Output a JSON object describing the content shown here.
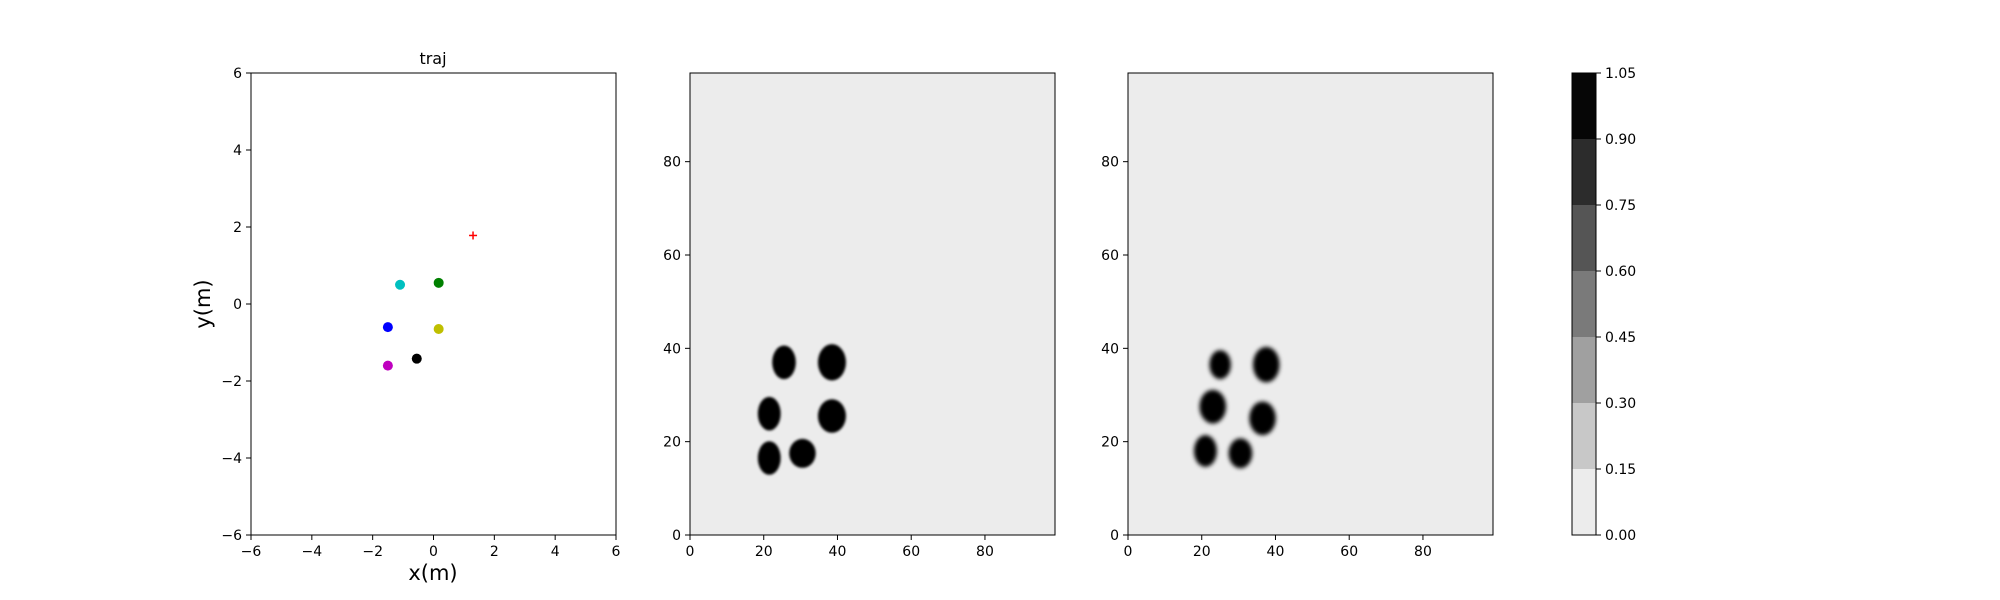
{
  "chart_data": [
    {
      "type": "scatter",
      "title": "traj",
      "xlabel": "x(m)",
      "ylabel": "y(m)",
      "xlim": [
        -6,
        6
      ],
      "ylim": [
        -6,
        6
      ],
      "xticks": [
        "−6",
        "−4",
        "−2",
        "0",
        "2",
        "4",
        "6"
      ],
      "yticks": [
        "−6",
        "−4",
        "−2",
        "0",
        "2",
        "4",
        "6"
      ],
      "grid": false,
      "points": [
        {
          "x": -1.1,
          "y": 0.5,
          "color": "#00bfbf",
          "marker": "circle"
        },
        {
          "x": 0.17,
          "y": 0.55,
          "color": "#008000",
          "marker": "circle"
        },
        {
          "x": -1.5,
          "y": -0.6,
          "color": "#0000ff",
          "marker": "circle"
        },
        {
          "x": 0.17,
          "y": -0.65,
          "color": "#bfbf00",
          "marker": "circle"
        },
        {
          "x": -0.55,
          "y": -1.42,
          "color": "#000000",
          "marker": "circle"
        },
        {
          "x": -1.5,
          "y": -1.6,
          "color": "#bf00bf",
          "marker": "circle"
        },
        {
          "x": 1.3,
          "y": 1.78,
          "color": "#ff0000",
          "marker": "plus"
        }
      ]
    },
    {
      "type": "heatmap",
      "xlim": [
        0,
        99
      ],
      "ylim": [
        0,
        99
      ],
      "xticks": [
        "0",
        "20",
        "40",
        "60",
        "80"
      ],
      "yticks": [
        "0",
        "20",
        "40",
        "60",
        "80"
      ],
      "background_value": 0.0,
      "blobs": [
        {
          "x": 25.5,
          "y": 37,
          "rx": 3.2,
          "ry": 3.6,
          "value": 1.0
        },
        {
          "x": 38.5,
          "y": 37,
          "rx": 3.8,
          "ry": 3.9,
          "value": 1.0
        },
        {
          "x": 21.5,
          "y": 26,
          "rx": 3.1,
          "ry": 3.6,
          "value": 1.0
        },
        {
          "x": 38.5,
          "y": 25.5,
          "rx": 3.8,
          "ry": 3.6,
          "value": 1.0
        },
        {
          "x": 21.5,
          "y": 16.5,
          "rx": 3.1,
          "ry": 3.6,
          "value": 1.0
        },
        {
          "x": 30.5,
          "y": 17.5,
          "rx": 3.6,
          "ry": 3.1,
          "value": 1.0
        }
      ]
    },
    {
      "type": "heatmap",
      "xlim": [
        0,
        99
      ],
      "ylim": [
        0,
        99
      ],
      "xticks": [
        "0",
        "20",
        "40",
        "60",
        "80"
      ],
      "yticks": [
        "0",
        "20",
        "40",
        "60",
        "80"
      ],
      "background_value": 0.0,
      "blobs": [
        {
          "x": 25,
          "y": 36.5,
          "rx": 2.9,
          "ry": 3.1,
          "value": 1.0
        },
        {
          "x": 37.5,
          "y": 36.5,
          "rx": 3.6,
          "ry": 3.8,
          "value": 1.0
        },
        {
          "x": 23,
          "y": 27.5,
          "rx": 3.6,
          "ry": 3.6,
          "value": 1.0
        },
        {
          "x": 36.5,
          "y": 25,
          "rx": 3.6,
          "ry": 3.6,
          "value": 1.0
        },
        {
          "x": 21,
          "y": 18,
          "rx": 3.1,
          "ry": 3.4,
          "value": 1.0
        },
        {
          "x": 30.5,
          "y": 17.5,
          "rx": 3.2,
          "ry": 3.2,
          "value": 1.0
        }
      ]
    },
    {
      "type": "colorbar",
      "levels": [
        0.0,
        0.15,
        0.3,
        0.45,
        0.6,
        0.75,
        0.9,
        1.05
      ],
      "tick_labels": [
        "0.00",
        "0.15",
        "0.30",
        "0.45",
        "0.60",
        "0.75",
        "0.90",
        "1.05"
      ],
      "colors": [
        "#ececec",
        "#c8c8c8",
        "#a0a0a0",
        "#7a7a7a",
        "#555555",
        "#2c2c2c",
        "#060606"
      ]
    }
  ]
}
